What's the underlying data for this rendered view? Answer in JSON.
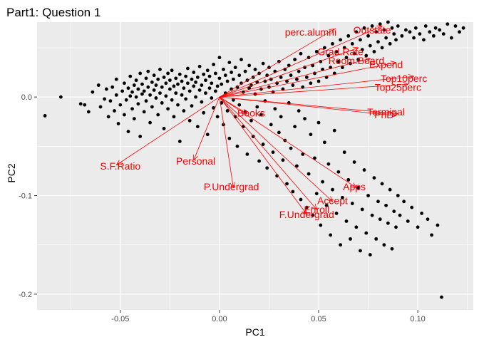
{
  "chart_data": {
    "type": "scatter",
    "title": "Part1: Question 1",
    "xlabel": "PC1",
    "ylabel": "PC2",
    "xlim": [
      -0.092,
      0.128
    ],
    "ylim": [
      -0.216,
      0.076
    ],
    "grid": true,
    "x_ticks": [
      {
        "value": -0.05,
        "label": "-0.05"
      },
      {
        "value": 0.0,
        "label": "0.00"
      },
      {
        "value": 0.05,
        "label": "0.05"
      },
      {
        "value": 0.1,
        "label": "0.10"
      }
    ],
    "y_ticks": [
      {
        "value": 0.0,
        "label": "0.0"
      },
      {
        "value": -0.1,
        "label": "-0.1"
      },
      {
        "value": -0.2,
        "label": "-0.2"
      }
    ],
    "point_color": "#000000",
    "arrow_color": "#ff0000",
    "points": [
      [
        -0.088,
        -0.019
      ],
      [
        -0.08,
        0.0
      ],
      [
        -0.07,
        -0.007
      ],
      [
        -0.068,
        -0.008
      ],
      [
        -0.066,
        -0.015
      ],
      [
        -0.064,
        0.005
      ],
      [
        -0.061,
        0.012
      ],
      [
        -0.06,
        -0.01
      ],
      [
        -0.058,
        -0.002
      ],
      [
        -0.057,
        0.008
      ],
      [
        -0.056,
        -0.02
      ],
      [
        -0.055,
        -0.004
      ],
      [
        -0.054,
        0.01
      ],
      [
        -0.053,
        -0.014
      ],
      [
        -0.052,
        0.002
      ],
      [
        -0.052,
        0.018
      ],
      [
        -0.051,
        -0.027
      ],
      [
        -0.05,
        -0.008
      ],
      [
        -0.049,
        0.006
      ],
      [
        -0.048,
        0.014
      ],
      [
        -0.048,
        -0.018
      ],
      [
        -0.047,
        -0.003
      ],
      [
        -0.046,
        0.009
      ],
      [
        -0.046,
        -0.035
      ],
      [
        -0.045,
        0.001
      ],
      [
        -0.045,
        0.021
      ],
      [
        -0.044,
        -0.012
      ],
      [
        -0.044,
        0.005
      ],
      [
        -0.043,
        0.012
      ],
      [
        -0.043,
        -0.022
      ],
      [
        -0.042,
        0.0
      ],
      [
        -0.042,
        0.017
      ],
      [
        -0.041,
        -0.007
      ],
      [
        -0.041,
        0.008
      ],
      [
        -0.04,
        0.024
      ],
      [
        -0.04,
        -0.04
      ],
      [
        -0.039,
        0.003
      ],
      [
        -0.039,
        0.013
      ],
      [
        -0.038,
        -0.015
      ],
      [
        -0.038,
        0.006
      ],
      [
        -0.037,
        0.019
      ],
      [
        -0.037,
        -0.004
      ],
      [
        -0.036,
        0.01
      ],
      [
        -0.036,
        0.026
      ],
      [
        -0.035,
        -0.026
      ],
      [
        -0.035,
        0.002
      ],
      [
        -0.034,
        0.015
      ],
      [
        -0.034,
        -0.01
      ],
      [
        -0.033,
        0.007
      ],
      [
        -0.033,
        0.022
      ],
      [
        -0.032,
        -0.001
      ],
      [
        -0.032,
        0.012
      ],
      [
        -0.031,
        -0.018
      ],
      [
        -0.031,
        0.018
      ],
      [
        -0.03,
        0.004
      ],
      [
        -0.03,
        0.028
      ],
      [
        -0.029,
        -0.006
      ],
      [
        -0.029,
        0.01
      ],
      [
        -0.028,
        0.02
      ],
      [
        -0.028,
        -0.032
      ],
      [
        -0.027,
        0.001
      ],
      [
        -0.027,
        0.014
      ],
      [
        -0.026,
        0.024
      ],
      [
        -0.026,
        -0.012
      ],
      [
        -0.025,
        0.008
      ],
      [
        -0.025,
        0.017
      ],
      [
        -0.024,
        -0.003
      ],
      [
        -0.024,
        0.027
      ],
      [
        -0.023,
        0.011
      ],
      [
        -0.023,
        -0.02
      ],
      [
        -0.022,
        0.004
      ],
      [
        -0.022,
        0.019
      ],
      [
        -0.021,
        -0.008
      ],
      [
        -0.021,
        0.013
      ],
      [
        -0.02,
        0.023
      ],
      [
        -0.02,
        -0.045
      ],
      [
        -0.019,
        0.002
      ],
      [
        -0.019,
        0.016
      ],
      [
        -0.018,
        -0.014
      ],
      [
        -0.018,
        0.009
      ],
      [
        -0.017,
        0.021
      ],
      [
        -0.017,
        -0.002
      ],
      [
        -0.016,
        0.014
      ],
      [
        -0.016,
        0.029
      ],
      [
        -0.015,
        -0.024
      ],
      [
        -0.015,
        0.006
      ],
      [
        -0.014,
        0.018
      ],
      [
        -0.014,
        -0.009
      ],
      [
        -0.013,
        0.011
      ],
      [
        -0.013,
        0.025
      ],
      [
        -0.012,
        0.0
      ],
      [
        -0.012,
        0.015
      ],
      [
        -0.011,
        -0.03
      ],
      [
        -0.011,
        0.02
      ],
      [
        -0.01,
        0.007
      ],
      [
        -0.01,
        0.031
      ],
      [
        -0.009,
        -0.005
      ],
      [
        -0.009,
        0.012
      ],
      [
        -0.008,
        0.023
      ],
      [
        -0.008,
        -0.016
      ],
      [
        -0.007,
        0.004
      ],
      [
        -0.007,
        0.017
      ],
      [
        -0.006,
        0.027
      ],
      [
        -0.006,
        -0.038
      ],
      [
        -0.005,
        0.009
      ],
      [
        -0.005,
        0.021
      ],
      [
        -0.004,
        -0.001
      ],
      [
        -0.004,
        0.014
      ],
      [
        -0.003,
        0.033
      ],
      [
        -0.003,
        -0.011
      ],
      [
        -0.002,
        0.006
      ],
      [
        -0.002,
        0.024
      ],
      [
        -0.001,
        -0.02
      ],
      [
        -0.001,
        0.011
      ],
      [
        0.0,
        0.019
      ],
      [
        0.0,
        0.04
      ],
      [
        0.001,
        -0.006
      ],
      [
        0.001,
        0.013
      ],
      [
        0.002,
        0.028
      ],
      [
        0.002,
        -0.028
      ],
      [
        0.003,
        0.004
      ],
      [
        0.003,
        0.022
      ],
      [
        0.004,
        -0.014
      ],
      [
        0.004,
        0.016
      ],
      [
        0.005,
        0.035
      ],
      [
        0.005,
        -0.042
      ],
      [
        0.006,
        0.008
      ],
      [
        0.006,
        0.025
      ],
      [
        0.007,
        -0.003
      ],
      [
        0.007,
        0.018
      ],
      [
        0.008,
        -0.02
      ],
      [
        0.008,
        0.03
      ],
      [
        0.009,
        0.01
      ],
      [
        0.009,
        -0.05
      ],
      [
        0.01,
        0.022
      ],
      [
        0.01,
        -0.008
      ],
      [
        0.011,
        0.014
      ],
      [
        0.011,
        0.038
      ],
      [
        0.012,
        -0.03
      ],
      [
        0.012,
        0.005
      ],
      [
        0.013,
        0.026
      ],
      [
        0.013,
        -0.015
      ],
      [
        0.014,
        0.017
      ],
      [
        0.014,
        -0.058
      ],
      [
        0.015,
        0.009
      ],
      [
        0.015,
        0.032
      ],
      [
        0.016,
        -0.024
      ],
      [
        0.016,
        0.012
      ],
      [
        0.017,
        0.02
      ],
      [
        0.017,
        -0.04
      ],
      [
        0.018,
        0.003
      ],
      [
        0.018,
        0.028
      ],
      [
        0.019,
        -0.01
      ],
      [
        0.019,
        0.015
      ],
      [
        0.02,
        -0.065
      ],
      [
        0.02,
        0.024
      ],
      [
        0.021,
        -0.018
      ],
      [
        0.021,
        0.008
      ],
      [
        0.022,
        0.034
      ],
      [
        0.022,
        -0.048
      ],
      [
        0.023,
        0.016
      ],
      [
        0.023,
        -0.004
      ],
      [
        0.024,
        0.022
      ],
      [
        0.024,
        -0.072
      ],
      [
        0.025,
        0.01
      ],
      [
        0.025,
        0.03
      ],
      [
        0.026,
        -0.028
      ],
      [
        0.026,
        0.018
      ],
      [
        0.027,
        -0.056
      ],
      [
        0.027,
        0.005
      ],
      [
        0.028,
        0.026
      ],
      [
        0.028,
        -0.012
      ],
      [
        0.029,
        0.014
      ],
      [
        0.029,
        -0.08
      ],
      [
        0.03,
        0.036
      ],
      [
        0.03,
        -0.036
      ],
      [
        0.031,
        0.02
      ],
      [
        0.031,
        -0.02
      ],
      [
        0.032,
        0.008
      ],
      [
        0.032,
        -0.064
      ],
      [
        0.033,
        0.028
      ],
      [
        0.033,
        -0.044
      ],
      [
        0.034,
        0.016
      ],
      [
        0.034,
        -0.088
      ],
      [
        0.035,
        0.032
      ],
      [
        0.035,
        -0.006
      ],
      [
        0.036,
        0.022
      ],
      [
        0.036,
        -0.052
      ],
      [
        0.037,
        0.012
      ],
      [
        0.037,
        -0.096
      ],
      [
        0.038,
        0.038
      ],
      [
        0.038,
        -0.03
      ],
      [
        0.039,
        0.018
      ],
      [
        0.039,
        -0.07
      ],
      [
        0.04,
        0.026
      ],
      [
        0.04,
        -0.014
      ],
      [
        0.041,
        0.044
      ],
      [
        0.041,
        -0.104
      ],
      [
        0.042,
        0.01
      ],
      [
        0.042,
        -0.058
      ],
      [
        0.043,
        0.03
      ],
      [
        0.043,
        -0.022
      ],
      [
        0.044,
        -0.112
      ],
      [
        0.044,
        0.02
      ],
      [
        0.045,
        -0.078
      ],
      [
        0.045,
        0.04
      ],
      [
        0.046,
        -0.038
      ],
      [
        0.046,
        0.014
      ],
      [
        0.047,
        -0.12
      ],
      [
        0.047,
        0.032
      ],
      [
        0.048,
        -0.062
      ],
      [
        0.048,
        0.024
      ],
      [
        0.049,
        -0.098
      ],
      [
        0.049,
        0.046
      ],
      [
        0.05,
        -0.026
      ],
      [
        0.05,
        0.016
      ],
      [
        0.051,
        -0.13
      ],
      [
        0.051,
        0.036
      ],
      [
        0.052,
        -0.086
      ],
      [
        0.052,
        0.028
      ],
      [
        0.053,
        -0.046
      ],
      [
        0.053,
        0.05
      ],
      [
        0.054,
        -0.11
      ],
      [
        0.054,
        0.02
      ],
      [
        0.055,
        -0.068
      ],
      [
        0.055,
        0.042
      ],
      [
        0.056,
        -0.14
      ],
      [
        0.056,
        0.03
      ],
      [
        0.057,
        -0.094
      ],
      [
        0.057,
        0.054
      ],
      [
        0.058,
        -0.034
      ],
      [
        0.058,
        0.024
      ],
      [
        0.059,
        -0.118
      ],
      [
        0.059,
        0.046
      ],
      [
        0.06,
        -0.076
      ],
      [
        0.06,
        0.036
      ],
      [
        0.061,
        -0.15
      ],
      [
        0.061,
        0.058
      ],
      [
        0.062,
        -0.102
      ],
      [
        0.062,
        0.03
      ],
      [
        0.063,
        -0.056
      ],
      [
        0.063,
        0.05
      ],
      [
        0.064,
        -0.126
      ],
      [
        0.064,
        0.04
      ],
      [
        0.065,
        -0.084
      ],
      [
        0.065,
        0.062
      ],
      [
        0.066,
        -0.144
      ],
      [
        0.066,
        0.034
      ],
      [
        0.067,
        -0.108
      ],
      [
        0.067,
        0.054
      ],
      [
        0.068,
        -0.066
      ],
      [
        0.068,
        0.044
      ],
      [
        0.069,
        -0.132
      ],
      [
        0.069,
        0.066
      ],
      [
        0.07,
        -0.092
      ],
      [
        0.07,
        0.038
      ],
      [
        0.071,
        -0.156
      ],
      [
        0.071,
        0.058
      ],
      [
        0.072,
        -0.114
      ],
      [
        0.072,
        0.048
      ],
      [
        0.073,
        -0.074
      ],
      [
        0.073,
        0.07
      ],
      [
        0.074,
        -0.138
      ],
      [
        0.074,
        0.042
      ],
      [
        0.075,
        -0.1
      ],
      [
        0.075,
        0.062
      ],
      [
        0.076,
        -0.16
      ],
      [
        0.076,
        0.052
      ],
      [
        0.077,
        -0.12
      ],
      [
        0.077,
        0.072
      ],
      [
        0.078,
        -0.082
      ],
      [
        0.078,
        0.046
      ],
      [
        0.079,
        -0.144
      ],
      [
        0.079,
        0.066
      ],
      [
        0.08,
        -0.106
      ],
      [
        0.08,
        0.056
      ],
      [
        0.081,
        -0.124
      ],
      [
        0.081,
        0.074
      ],
      [
        0.082,
        -0.088
      ],
      [
        0.082,
        0.05
      ],
      [
        0.083,
        -0.15
      ],
      [
        0.083,
        0.068
      ],
      [
        0.084,
        -0.11
      ],
      [
        0.084,
        0.06
      ],
      [
        0.085,
        -0.128
      ],
      [
        0.085,
        0.076
      ],
      [
        0.086,
        -0.094
      ],
      [
        0.086,
        0.054
      ],
      [
        0.087,
        -0.154
      ],
      [
        0.087,
        0.07
      ],
      [
        0.088,
        -0.116
      ],
      [
        0.088,
        0.064
      ],
      [
        0.089,
        -0.132
      ],
      [
        0.089,
        0.058
      ],
      [
        0.09,
        -0.1
      ],
      [
        0.09,
        0.072
      ],
      [
        0.091,
        -0.12
      ],
      [
        0.092,
        0.062
      ],
      [
        0.093,
        -0.106
      ],
      [
        0.094,
        0.068
      ],
      [
        0.095,
        -0.126
      ],
      [
        0.096,
        0.066
      ],
      [
        0.097,
        -0.112
      ],
      [
        0.098,
        0.06
      ],
      [
        0.099,
        0.07
      ],
      [
        0.1,
        -0.132
      ],
      [
        0.101,
        0.064
      ],
      [
        0.102,
        -0.118
      ],
      [
        0.103,
        0.058
      ],
      [
        0.104,
        0.072
      ],
      [
        0.105,
        -0.124
      ],
      [
        0.106,
        0.066
      ],
      [
        0.107,
        -0.14
      ],
      [
        0.108,
        0.062
      ],
      [
        0.109,
        0.07
      ],
      [
        0.11,
        -0.13
      ],
      [
        0.111,
        0.068
      ],
      [
        0.112,
        -0.203
      ],
      [
        0.113,
        0.064
      ],
      [
        0.115,
        0.074
      ],
      [
        0.117,
        0.06
      ],
      [
        0.119,
        0.072
      ],
      [
        0.121,
        0.066
      ],
      [
        0.123,
        0.07
      ]
    ],
    "vectors": [
      {
        "label": "perc.alumni",
        "end": [
          0.058,
          0.069
        ],
        "label_pos": [
          0.046,
          0.066
        ]
      },
      {
        "label": "Outstate",
        "end": [
          0.082,
          0.072
        ],
        "label_pos": [
          0.077,
          0.068
        ]
      },
      {
        "label": "Grad.Rate",
        "end": [
          0.07,
          0.05
        ],
        "label_pos": [
          0.061,
          0.046
        ]
      },
      {
        "label": "Room.Board",
        "end": [
          0.076,
          0.039
        ],
        "label_pos": [
          0.069,
          0.037
        ]
      },
      {
        "label": "Expend",
        "end": [
          0.089,
          0.035
        ],
        "label_pos": [
          0.084,
          0.033
        ]
      },
      {
        "label": "Top10perc",
        "end": [
          0.098,
          0.021
        ],
        "label_pos": [
          0.093,
          0.019
        ]
      },
      {
        "label": "Top25perc",
        "end": [
          0.095,
          0.013
        ],
        "label_pos": [
          0.09,
          0.01
        ]
      },
      {
        "label": "Terminal",
        "end": [
          0.09,
          -0.017
        ],
        "label_pos": [
          0.084,
          -0.015
        ]
      },
      {
        "label": "PhD",
        "end": [
          0.089,
          -0.019
        ],
        "label_pos": [
          0.083,
          -0.018
        ]
      },
      {
        "label": "Books",
        "end": [
          0.014,
          -0.017
        ],
        "label_pos": [
          0.016,
          -0.016
        ]
      },
      {
        "label": "S.F.Ratio",
        "end": [
          -0.052,
          -0.069
        ],
        "label_pos": [
          -0.05,
          -0.07
        ]
      },
      {
        "label": "Personal",
        "end": [
          -0.013,
          -0.064
        ],
        "label_pos": [
          -0.012,
          -0.065
        ]
      },
      {
        "label": "P.Undergrad",
        "end": [
          0.007,
          -0.092
        ],
        "label_pos": [
          0.006,
          -0.091
        ]
      },
      {
        "label": "Apps",
        "end": [
          0.069,
          -0.092
        ],
        "label_pos": [
          0.068,
          -0.091
        ]
      },
      {
        "label": "Accept",
        "end": [
          0.057,
          -0.106
        ],
        "label_pos": [
          0.057,
          -0.105
        ]
      },
      {
        "label": "Enroll",
        "end": [
          0.049,
          -0.114
        ],
        "label_pos": [
          0.049,
          -0.114
        ]
      },
      {
        "label": "F.Undergrad",
        "end": [
          0.044,
          -0.119
        ],
        "label_pos": [
          0.044,
          -0.119
        ]
      }
    ]
  }
}
